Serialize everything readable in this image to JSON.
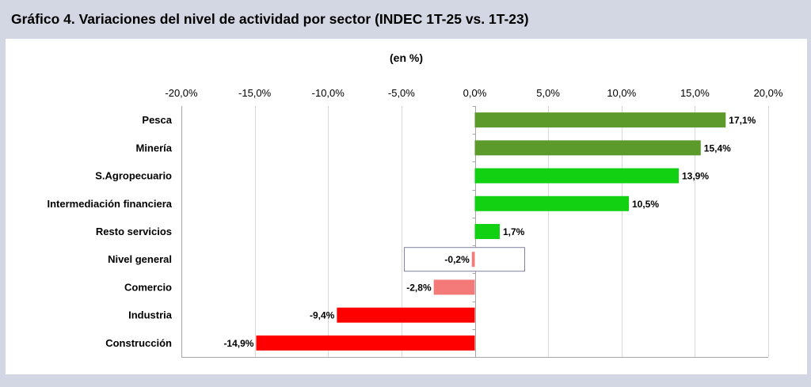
{
  "title": "Gráfico 4. Variaciones del nivel de actividad por sector (INDEC 1T-25 vs. 1T-23)",
  "chart_data": {
    "type": "bar",
    "orientation": "horizontal",
    "title": "Gráfico 4. Variaciones del nivel de actividad por sector (INDEC 1T-25 vs. 1T-23)",
    "subtitle": "(en %)",
    "xlabel": "",
    "ylabel": "",
    "xlim": [
      -20,
      20
    ],
    "tick_values": [
      -20,
      -15,
      -10,
      -5,
      0,
      5,
      10,
      15,
      20
    ],
    "tick_labels": [
      "-20,0%",
      "-15,0%",
      "-10,0%",
      "-5,0%",
      "0,0%",
      "5,0%",
      "10,0%",
      "15,0%",
      "20,0%"
    ],
    "grid": true,
    "legend": "none",
    "categories": [
      "Pesca",
      "Minería",
      "S.Agropecuario",
      "Intermediación financiera",
      "Resto servicios",
      "Nivel general",
      "Comercio",
      "Industria",
      "Construcción"
    ],
    "values": [
      17.1,
      15.4,
      13.9,
      10.5,
      1.7,
      -0.2,
      -2.8,
      -9.4,
      -14.9
    ],
    "value_labels": [
      "17,1%",
      "15,4%",
      "13,9%",
      "10,5%",
      "1,7%",
      "-0,2%",
      "-2,8%",
      "-9,4%",
      "-14,9%"
    ],
    "colors": [
      "#5c9b2b",
      "#5c9b2b",
      "#12d112",
      "#12d112",
      "#12d112",
      "#f47a7a",
      "#f47a7a",
      "#ff0000",
      "#ff0000"
    ],
    "highlight_category": "Nivel general",
    "highlight_border_color": "#7f7f9f",
    "axis_color": "#a6a6a6",
    "grid_color": "#d9d9d9"
  }
}
